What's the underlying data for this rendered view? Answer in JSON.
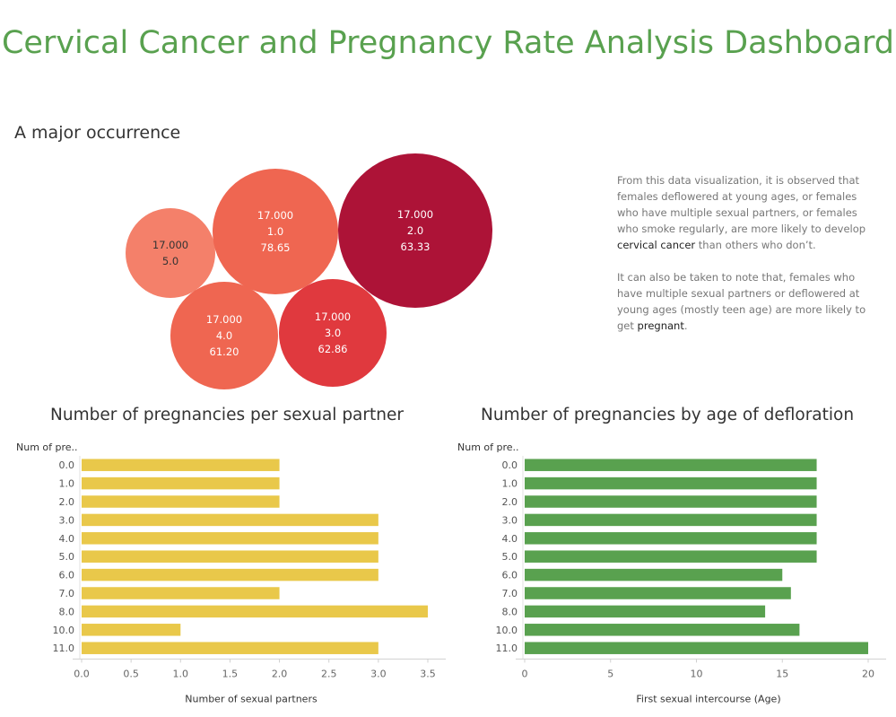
{
  "title": "Cervical Cancer and Pregnancy Rate Analysis Dashboard",
  "bubble_section": {
    "subtitle": "A major occurrence",
    "bubbles": [
      {
        "lines": [
          "17.000",
          "5.0"
        ],
        "color": "#f4806a",
        "text_color": "#333333"
      },
      {
        "lines": [
          "17.000",
          "1.0",
          "78.65"
        ],
        "color": "#ef6651",
        "text_color": "#ffffff"
      },
      {
        "lines": [
          "17.000",
          "2.0",
          "63.33"
        ],
        "color": "#ad1337",
        "text_color": "#ffffff"
      },
      {
        "lines": [
          "17.000",
          "4.0",
          "61.20"
        ],
        "color": "#ef6651",
        "text_color": "#ffffff"
      },
      {
        "lines": [
          "17.000",
          "3.0",
          "62.86"
        ],
        "color": "#e0393e",
        "text_color": "#ffffff"
      }
    ]
  },
  "note": {
    "p1_pre": "From this data visualization, it is observed that females deflowered at young ages, or females who have multiple sexual partners, or females who smoke regularly, are more likely to develop ",
    "p1_bold": "cervical cancer",
    "p1_post": " than others who don’t.",
    "p2_pre": "It can also be taken to note that, females who have multiple sexual partners or deflowered at young ages (mostly teen age) are more likely to get ",
    "p2_bold": "pregnant",
    "p2_post": "."
  },
  "chart_data": [
    {
      "type": "bar",
      "orientation": "horizontal",
      "title": "Number of pregnancies per sexual partner",
      "row_header": "Num of pre..",
      "categories": [
        "0.0",
        "1.0",
        "2.0",
        "3.0",
        "4.0",
        "5.0",
        "6.0",
        "7.0",
        "8.0",
        "10.0",
        "11.0"
      ],
      "values": [
        2,
        2,
        2,
        3,
        3,
        3,
        3,
        2,
        3.5,
        1,
        3
      ],
      "xlabel": "Number of sexual partners",
      "xlim": [
        0,
        3.5
      ],
      "xticks": [
        "0.0",
        "0.5",
        "1.0",
        "1.5",
        "2.0",
        "2.5",
        "3.0",
        "3.5"
      ],
      "color": "#e9c84a"
    },
    {
      "type": "bar",
      "orientation": "horizontal",
      "title": "Number of pregnancies by age of defloration",
      "row_header": "Num of pre..",
      "categories": [
        "0.0",
        "1.0",
        "2.0",
        "3.0",
        "4.0",
        "5.0",
        "6.0",
        "7.0",
        "8.0",
        "10.0",
        "11.0"
      ],
      "values": [
        17,
        17,
        17,
        17,
        17,
        17,
        15,
        15.5,
        14,
        16,
        20
      ],
      "xlabel": "First sexual intercourse (Age)",
      "xlim": [
        0,
        20
      ],
      "xticks": [
        "0",
        "5",
        "10",
        "15",
        "20"
      ],
      "color": "#59a14f"
    }
  ]
}
